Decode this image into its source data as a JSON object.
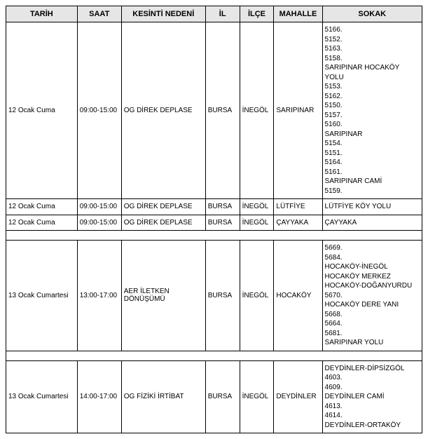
{
  "headers": {
    "tarih": "TARİH",
    "saat": "SAAT",
    "neden": "KESİNTİ NEDENİ",
    "il": "İL",
    "ilce": "İLÇE",
    "mahalle": "MAHALLE",
    "sokak": "SOKAK"
  },
  "rows": [
    {
      "tarih": "12 Ocak Cuma",
      "saat": "09:00-15:00",
      "neden": "OG DİREK DEPLASE",
      "il": "BURSA",
      "ilce": "İNEGÖL",
      "mahalle": "SARIPINAR",
      "sokak": "5166.\n5152.\n5163.\n5158.\nSARIPINAR HOCAKÖY YOLU\n5153.\n5162.\n5150.\n5157.\n5160.\nSARIPINAR\n5154.\n5151.\n5164.\n5161.\nSARIPINAR CAMİ\n5159."
    },
    {
      "tarih": "12 Ocak Cuma",
      "saat": "09:00-15:00",
      "neden": "OG DİREK DEPLASE",
      "il": "BURSA",
      "ilce": "İNEGÖL",
      "mahalle": "LÜTFİYE",
      "sokak": "LÜTFİYE KÖY YOLU"
    },
    {
      "tarih": "12 Ocak Cuma",
      "saat": "09:00-15:00",
      "neden": "OG DİREK DEPLASE",
      "il": "BURSA",
      "ilce": "İNEGÖL",
      "mahalle": "ÇAYYAKA",
      "sokak": "ÇAYYAKA"
    },
    {
      "spacer": true
    },
    {
      "tarih": "13 Ocak Cumartesi",
      "saat": "13:00-17:00",
      "neden": "AER İLETKEN DÖNÜŞÜMÜ",
      "il": "BURSA",
      "ilce": "İNEGÖL",
      "mahalle": "HOCAKÖY",
      "sokak": "5669.\n5684.\nHOCAKÖY-İNEGÖL\nHOCAKÖY MERKEZ\nHOCAKÖY-DOĞANYURDU\n5670.\nHOCAKÖY DERE YANI\n5668.\n5664.\n5681.\nSARIPINAR YOLU"
    },
    {
      "spacer": true
    },
    {
      "tarih": "13 Ocak Cumartesi",
      "saat": "14:00-17:00",
      "neden": "OG FİZİKİ İRTİBAT",
      "il": "BURSA",
      "ilce": "İNEGÖL",
      "mahalle": "DEYDİNLER",
      "sokak": "DEYDİNLER-DİPSİZGÖL\n4603.\n4609.\nDEYDİNLER CAMİ\n4613.\n4614.\nDEYDİNLER-ORTAKÖY"
    }
  ]
}
